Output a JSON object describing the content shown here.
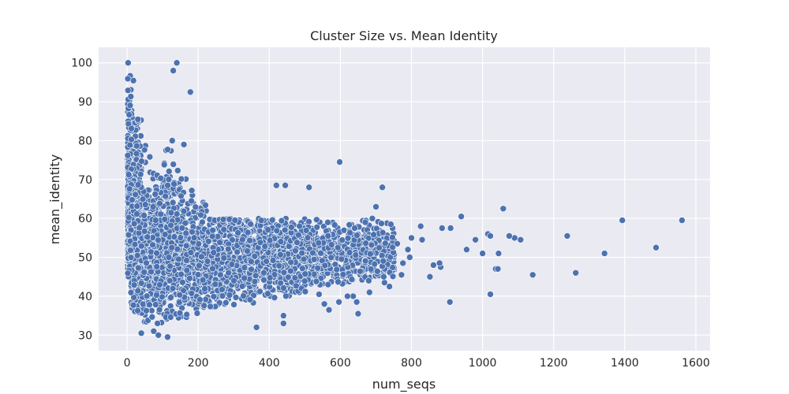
{
  "chart_data": {
    "type": "scatter",
    "title": "Cluster Size vs. Mean Identity",
    "xlabel": "num_seqs",
    "ylabel": "mean_identity",
    "xlim": [
      -80,
      1640
    ],
    "ylim": [
      26,
      104
    ],
    "x_ticks": [
      0,
      200,
      400,
      600,
      800,
      1000,
      1200,
      1400,
      1600
    ],
    "y_ticks": [
      30,
      40,
      50,
      60,
      70,
      80,
      90,
      100
    ],
    "grid": true,
    "background": "#eaeaf2",
    "point_color": "#4c72b0",
    "point_edge": "#ffffff",
    "outliers": [
      {
        "x": 3,
        "y": 100
      },
      {
        "x": 140,
        "y": 100
      },
      {
        "x": 130,
        "y": 98
      },
      {
        "x": 178,
        "y": 92.5
      },
      {
        "x": 160,
        "y": 79
      },
      {
        "x": 127,
        "y": 80
      },
      {
        "x": 598,
        "y": 74.5
      },
      {
        "x": 718,
        "y": 68
      },
      {
        "x": 512,
        "y": 68
      },
      {
        "x": 420,
        "y": 68.5
      },
      {
        "x": 445,
        "y": 68.5
      },
      {
        "x": 1058,
        "y": 62.5
      },
      {
        "x": 940,
        "y": 60.5
      },
      {
        "x": 1393,
        "y": 59.5
      },
      {
        "x": 1561,
        "y": 59.5
      },
      {
        "x": 1488,
        "y": 52.5
      },
      {
        "x": 1343,
        "y": 51
      },
      {
        "x": 1262,
        "y": 46
      },
      {
        "x": 1238,
        "y": 55.5
      },
      {
        "x": 1141,
        "y": 45.5
      },
      {
        "x": 1107,
        "y": 54.5
      },
      {
        "x": 1090,
        "y": 55
      },
      {
        "x": 1075,
        "y": 55.5
      },
      {
        "x": 1015,
        "y": 56
      },
      {
        "x": 1022,
        "y": 55.5
      },
      {
        "x": 1045,
        "y": 51
      },
      {
        "x": 1037,
        "y": 47
      },
      {
        "x": 1043,
        "y": 47
      },
      {
        "x": 1022,
        "y": 40.5
      },
      {
        "x": 1000,
        "y": 51
      },
      {
        "x": 980,
        "y": 54.5
      },
      {
        "x": 955,
        "y": 52
      },
      {
        "x": 910,
        "y": 57.5
      },
      {
        "x": 908,
        "y": 38.5
      },
      {
        "x": 886,
        "y": 57.5
      },
      {
        "x": 882,
        "y": 47.5
      },
      {
        "x": 879,
        "y": 48.5
      },
      {
        "x": 862,
        "y": 48
      },
      {
        "x": 852,
        "y": 45
      },
      {
        "x": 830,
        "y": 54.5
      },
      {
        "x": 826,
        "y": 58
      },
      {
        "x": 800,
        "y": 55
      },
      {
        "x": 795,
        "y": 50
      },
      {
        "x": 790,
        "y": 52
      },
      {
        "x": 776,
        "y": 48.5
      },
      {
        "x": 772,
        "y": 45.5
      },
      {
        "x": 760,
        "y": 53.5
      },
      {
        "x": 747,
        "y": 57.5
      },
      {
        "x": 742,
        "y": 58.5
      },
      {
        "x": 738,
        "y": 42.5
      },
      {
        "x": 724,
        "y": 43.5
      },
      {
        "x": 722,
        "y": 45
      },
      {
        "x": 700,
        "y": 63
      },
      {
        "x": 690,
        "y": 60
      },
      {
        "x": 680,
        "y": 44
      },
      {
        "x": 682,
        "y": 41
      },
      {
        "x": 650,
        "y": 35.5
      },
      {
        "x": 646,
        "y": 38.5
      },
      {
        "x": 636,
        "y": 40
      },
      {
        "x": 620,
        "y": 40
      },
      {
        "x": 596,
        "y": 38.5
      },
      {
        "x": 568,
        "y": 36.5
      },
      {
        "x": 555,
        "y": 38
      },
      {
        "x": 540,
        "y": 40.5
      },
      {
        "x": 440,
        "y": 33
      },
      {
        "x": 440,
        "y": 35
      },
      {
        "x": 364,
        "y": 32
      },
      {
        "x": 114,
        "y": 29.5
      },
      {
        "x": 88,
        "y": 30
      },
      {
        "x": 40,
        "y": 30.5
      },
      {
        "x": 75,
        "y": 31
      }
    ]
  }
}
